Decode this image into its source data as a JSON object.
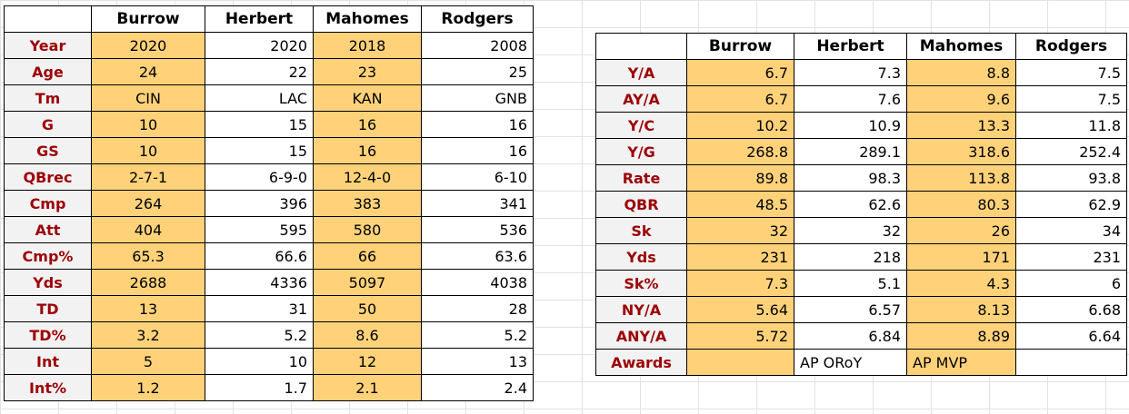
{
  "colors": {
    "label_text": "#9c0006",
    "label_bg": "#f2f2f2",
    "highlight": "#ffd27a",
    "gridline": "#e2e2e2"
  },
  "table1": {
    "headers": [
      "Burrow",
      "Herbert",
      "Mahomes",
      "Rodgers"
    ],
    "rows": [
      {
        "label": "Year",
        "values": [
          "2020",
          "2020",
          "2018",
          "2008"
        ]
      },
      {
        "label": "Age",
        "values": [
          "24",
          "22",
          "23",
          "25"
        ]
      },
      {
        "label": "Tm",
        "values": [
          "CIN",
          "LAC",
          "KAN",
          "GNB"
        ]
      },
      {
        "label": "G",
        "values": [
          "10",
          "15",
          "16",
          "16"
        ]
      },
      {
        "label": "GS",
        "values": [
          "10",
          "15",
          "16",
          "16"
        ]
      },
      {
        "label": "QBrec",
        "values": [
          "2-7-1",
          "6-9-0",
          "12-4-0",
          "6-10"
        ]
      },
      {
        "label": "Cmp",
        "values": [
          "264",
          "396",
          "383",
          "341"
        ]
      },
      {
        "label": "Att",
        "values": [
          "404",
          "595",
          "580",
          "536"
        ]
      },
      {
        "label": "Cmp%",
        "values": [
          "65.3",
          "66.6",
          "66",
          "63.6"
        ]
      },
      {
        "label": "Yds",
        "values": [
          "2688",
          "4336",
          "5097",
          "4038"
        ]
      },
      {
        "label": "TD",
        "values": [
          "13",
          "31",
          "50",
          "28"
        ]
      },
      {
        "label": "TD%",
        "values": [
          "3.2",
          "5.2",
          "8.6",
          "5.2"
        ]
      },
      {
        "label": "Int",
        "values": [
          "5",
          "10",
          "12",
          "13"
        ]
      },
      {
        "label": "Int%",
        "values": [
          "1.2",
          "1.7",
          "2.1",
          "2.4"
        ]
      }
    ]
  },
  "table2": {
    "headers": [
      "Burrow",
      "Herbert",
      "Mahomes",
      "Rodgers"
    ],
    "rows": [
      {
        "label": "Y/A",
        "values": [
          "6.7",
          "7.3",
          "8.8",
          "7.5"
        ]
      },
      {
        "label": "AY/A",
        "values": [
          "6.7",
          "7.6",
          "9.6",
          "7.5"
        ]
      },
      {
        "label": "Y/C",
        "values": [
          "10.2",
          "10.9",
          "13.3",
          "11.8"
        ]
      },
      {
        "label": "Y/G",
        "values": [
          "268.8",
          "289.1",
          "318.6",
          "252.4"
        ]
      },
      {
        "label": "Rate",
        "values": [
          "89.8",
          "98.3",
          "113.8",
          "93.8"
        ]
      },
      {
        "label": "QBR",
        "values": [
          "48.5",
          "62.6",
          "80.3",
          "62.9"
        ]
      },
      {
        "label": "Sk",
        "values": [
          "32",
          "32",
          "26",
          "34"
        ]
      },
      {
        "label": "Yds",
        "values": [
          "231",
          "218",
          "171",
          "231"
        ]
      },
      {
        "label": "Sk%",
        "values": [
          "7.3",
          "5.1",
          "4.3",
          "6"
        ]
      },
      {
        "label": "NY/A",
        "values": [
          "5.64",
          "6.57",
          "8.13",
          "6.68"
        ]
      },
      {
        "label": "ANY/A",
        "values": [
          "5.72",
          "6.84",
          "8.89",
          "6.64"
        ]
      },
      {
        "label": "Awards",
        "values": [
          "",
          "AP ORoY",
          "AP MVP",
          ""
        ]
      }
    ]
  }
}
